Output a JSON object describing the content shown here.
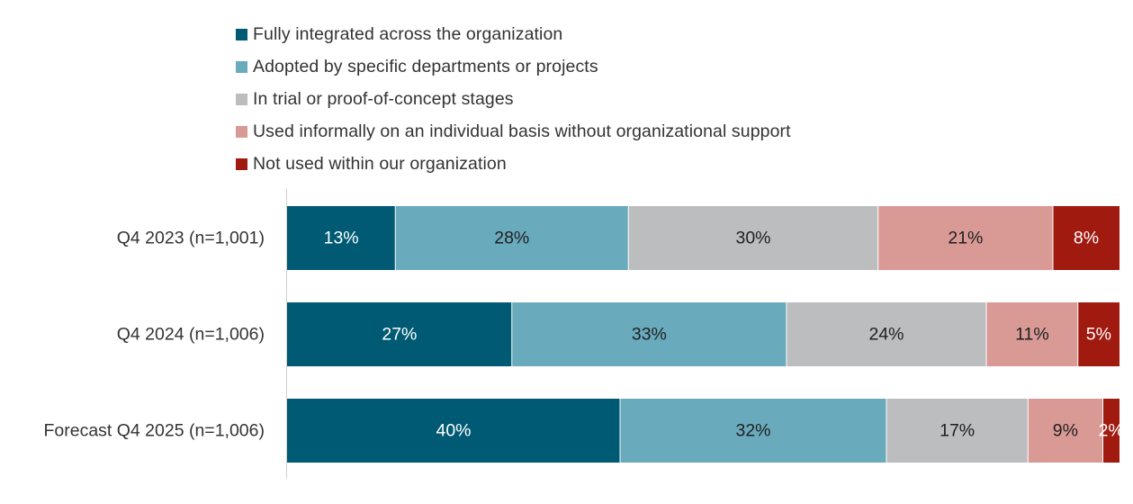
{
  "chart_data": {
    "type": "bar",
    "orientation": "horizontal",
    "stacked": true,
    "percent_stacked": true,
    "categories": [
      "Q4 2023 (n=1,001)",
      "Q4 2024 (n=1,006)",
      "Forecast Q4 2025 (n=1,006)"
    ],
    "series": [
      {
        "name": "Fully integrated across the organization",
        "color": "#005A73",
        "label_color": "#ffffff",
        "values": [
          13,
          27,
          40
        ]
      },
      {
        "name": "Adopted by specific departments or projects",
        "color": "#6AAABD",
        "label_color": "#1f1f1f",
        "values": [
          28,
          33,
          32
        ]
      },
      {
        "name": "In trial or proof-of-concept stages",
        "color": "#BCBDBF",
        "label_color": "#1f1f1f",
        "values": [
          30,
          24,
          17
        ]
      },
      {
        "name": "Used informally on an individual basis without organizational support",
        "color": "#D99A96",
        "label_color": "#1f1f1f",
        "values": [
          21,
          11,
          9
        ]
      },
      {
        "name": "Not used within our organization",
        "color": "#A01A10",
        "label_color": "#ffffff",
        "values": [
          8,
          5,
          2
        ]
      }
    ],
    "data_labels": [
      [
        "13%",
        "27%",
        "40%"
      ],
      [
        "28%",
        "33%",
        "32%"
      ],
      [
        "30%",
        "24%",
        "17%"
      ],
      [
        "21%",
        "11%",
        "9%"
      ],
      [
        "8%",
        "5%",
        "2%"
      ]
    ],
    "legend": "top",
    "xlim": [
      0,
      100
    ],
    "grid": false
  }
}
